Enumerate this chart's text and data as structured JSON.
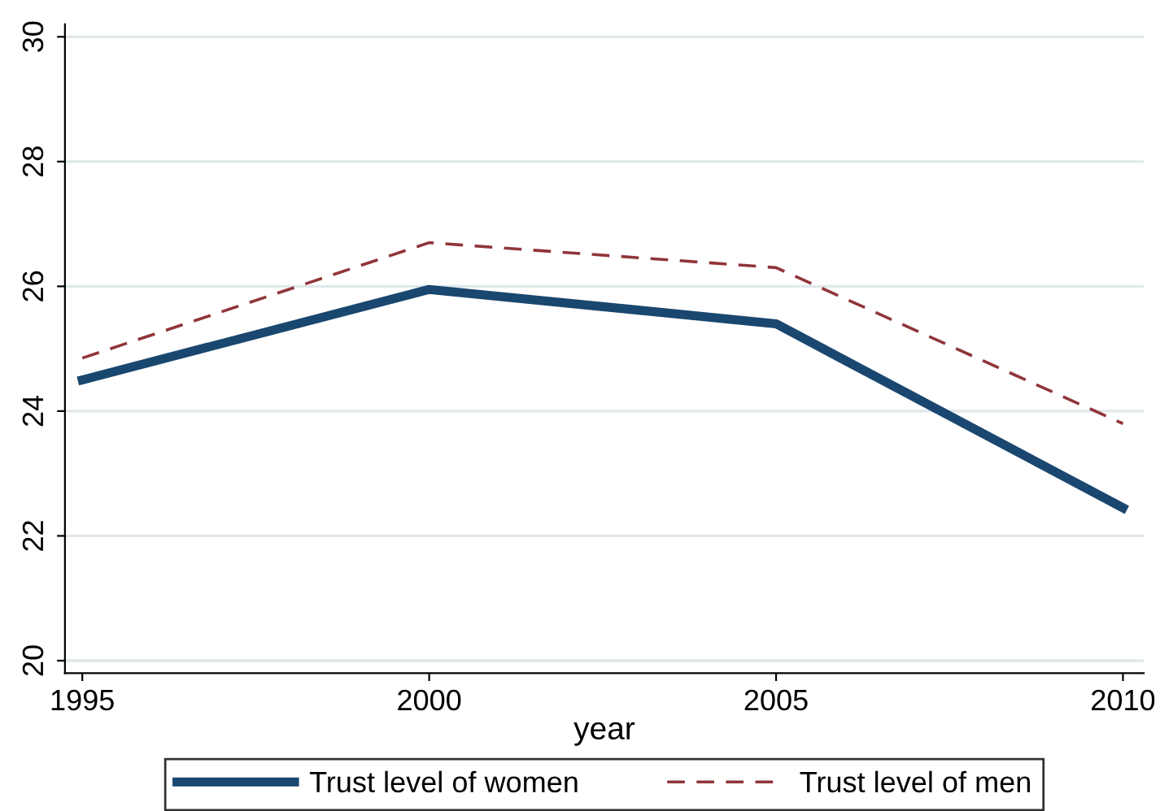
{
  "chart_data": {
    "type": "line",
    "xlabel": "year",
    "x": [
      1995,
      2000,
      2005,
      2010
    ],
    "series": [
      {
        "name": "Trust level of women",
        "color": "#1a476f",
        "values": [
          24.5,
          25.95,
          25.4,
          22.45
        ],
        "line_style": "solid"
      },
      {
        "name": "Trust level of men",
        "color": "#90353b",
        "values": [
          24.85,
          26.7,
          26.3,
          23.8
        ],
        "line_style": "dashed"
      }
    ],
    "xlim": [
      1994.75,
      2010.3
    ],
    "xticks": [
      1995,
      2000,
      2005,
      2010
    ],
    "ylim": [
      19.8,
      30.2
    ],
    "yticks": [
      20,
      22,
      24,
      26,
      28,
      30
    ],
    "grid": "y",
    "legend": "bottom"
  }
}
